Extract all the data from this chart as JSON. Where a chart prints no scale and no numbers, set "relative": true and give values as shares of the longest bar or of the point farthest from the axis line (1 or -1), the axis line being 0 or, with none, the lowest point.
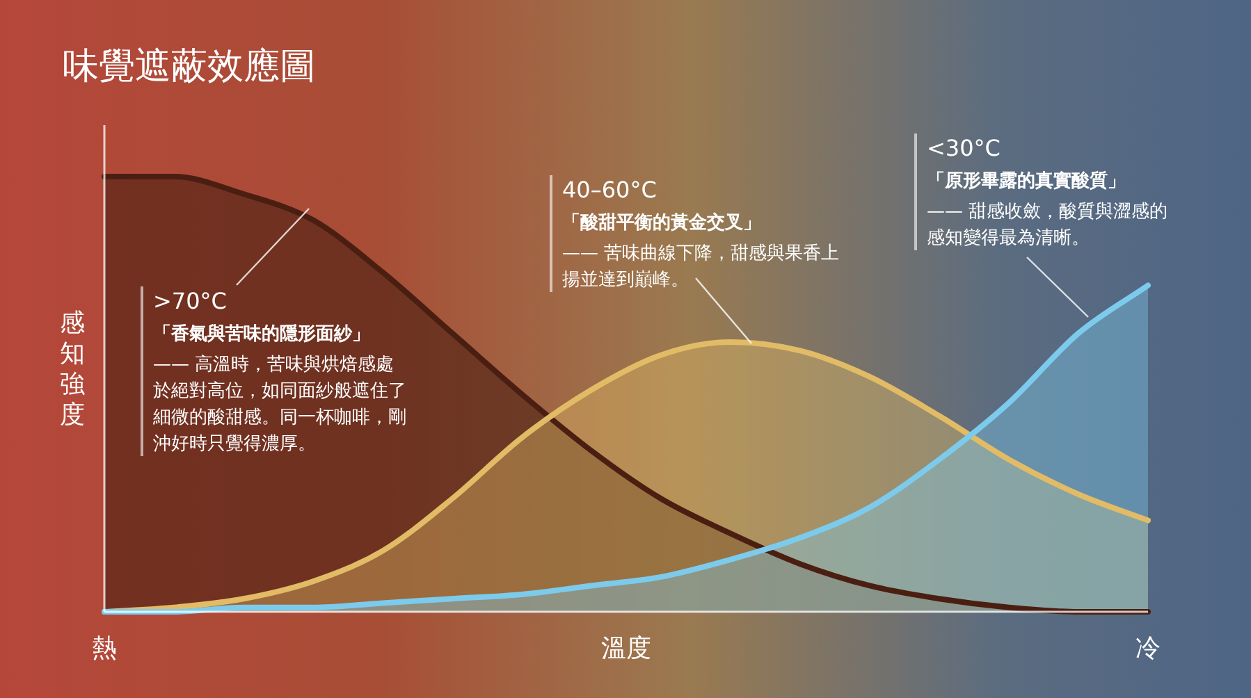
{
  "chart_data": {
    "type": "area",
    "relative": true,
    "title": "味覺遮蔽效應圖",
    "xlabel": "溫度",
    "ylabel": "感知強度",
    "categories": [
      "熱",
      null,
      null,
      null,
      null,
      null,
      null,
      null,
      null,
      null,
      null,
      null,
      null,
      null,
      null,
      "冷"
    ],
    "series": [
      {
        "color": "#4a1f12",
        "values": [
          1.0,
          1.0,
          0.96,
          0.9,
          0.78,
          0.64,
          0.5,
          0.37,
          0.26,
          0.18,
          0.11,
          0.06,
          0.03,
          0.01,
          0.0,
          0.0
        ]
      },
      {
        "color": "#e2bb66",
        "values": [
          0,
          0.01,
          0.03,
          0.07,
          0.14,
          0.26,
          0.4,
          0.51,
          0.59,
          0.62,
          0.6,
          0.54,
          0.45,
          0.35,
          0.27,
          0.21
        ]
      },
      {
        "color": "#7ccbec",
        "values": [
          0,
          0,
          0.01,
          0.01,
          0.02,
          0.03,
          0.04,
          0.06,
          0.08,
          0.12,
          0.17,
          0.24,
          0.35,
          0.48,
          0.64,
          0.75
        ]
      }
    ],
    "annotations": [
      ">70°C",
      "「香氣與苦味的隱形面紗」",
      "—— 高溫時，苦味與烘焙感處於絕對高位，如同面紗般遮住了細微的酸甜感。同一杯咖啡，剛沖好時只覺得濃厚。",
      "40–60°C",
      "「酸甜平衡的黃金交叉」",
      "—— 苦味曲線下降，甜感與果香上揚並達到巔峰。",
      "<30°C",
      "「原形畢露的真實酸質」",
      "—— 甜感收斂，酸質與澀感的感知變得最為清晰。"
    ]
  }
}
